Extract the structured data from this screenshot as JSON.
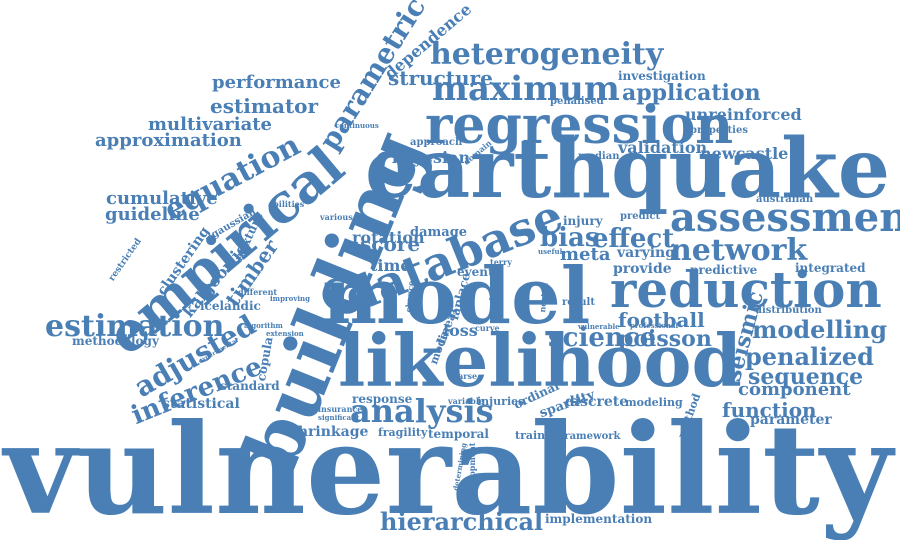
{
  "accent_color": "#4a7fb5",
  "words": [
    "vulnerability",
    "earthquake",
    "likelihood",
    "model",
    "building",
    "empirical",
    "regression",
    "reduction",
    "database",
    "assessment",
    "heterogeneity",
    "maximum",
    "analysis",
    "equation",
    "parametric",
    "network",
    "estimation",
    "adjusted",
    "inference",
    "science",
    "modelling",
    "penalized",
    "sequence",
    "hierarchical",
    "application",
    "effect",
    "bias",
    "score",
    "function",
    "component",
    "football",
    "poisson",
    "structure",
    "performance",
    "estimator",
    "multivariate",
    "approximation",
    "cumulative",
    "guideline",
    "timber",
    "kalgoorlie",
    "clustering",
    "seismic",
    "bayesian",
    "validation",
    "newcastle",
    "unreinforced",
    "dependence",
    "investigation",
    "rotation",
    "time",
    "loss",
    "meta",
    "varying",
    "provide",
    "predictive",
    "integrated",
    "methodology",
    "statistical",
    "shrinkage",
    "fragility",
    "temporal",
    "response",
    "discrete",
    "modeling",
    "parameter",
    "training",
    "framework",
    "implementation",
    "sparsity",
    "ordinal",
    "injuries",
    "variable",
    "copula",
    "standard",
    "icelandic",
    "mixture",
    "gaussian",
    "damage",
    "event",
    "injury",
    "approach",
    "properties",
    "australian",
    "distribution",
    "method",
    "result",
    "mode",
    "linear",
    "penalised",
    "median",
    "restricted",
    "abilities",
    "various",
    "different",
    "improving",
    "extension",
    "algorithm",
    "experimental",
    "insurance",
    "significant",
    "development",
    "determining",
    "curve",
    "predict",
    "sparse",
    "continuous",
    "domain",
    "terry",
    "useful",
    "laplace",
    "chance",
    "nested",
    "based",
    "professional",
    "vulnerable"
  ]
}
